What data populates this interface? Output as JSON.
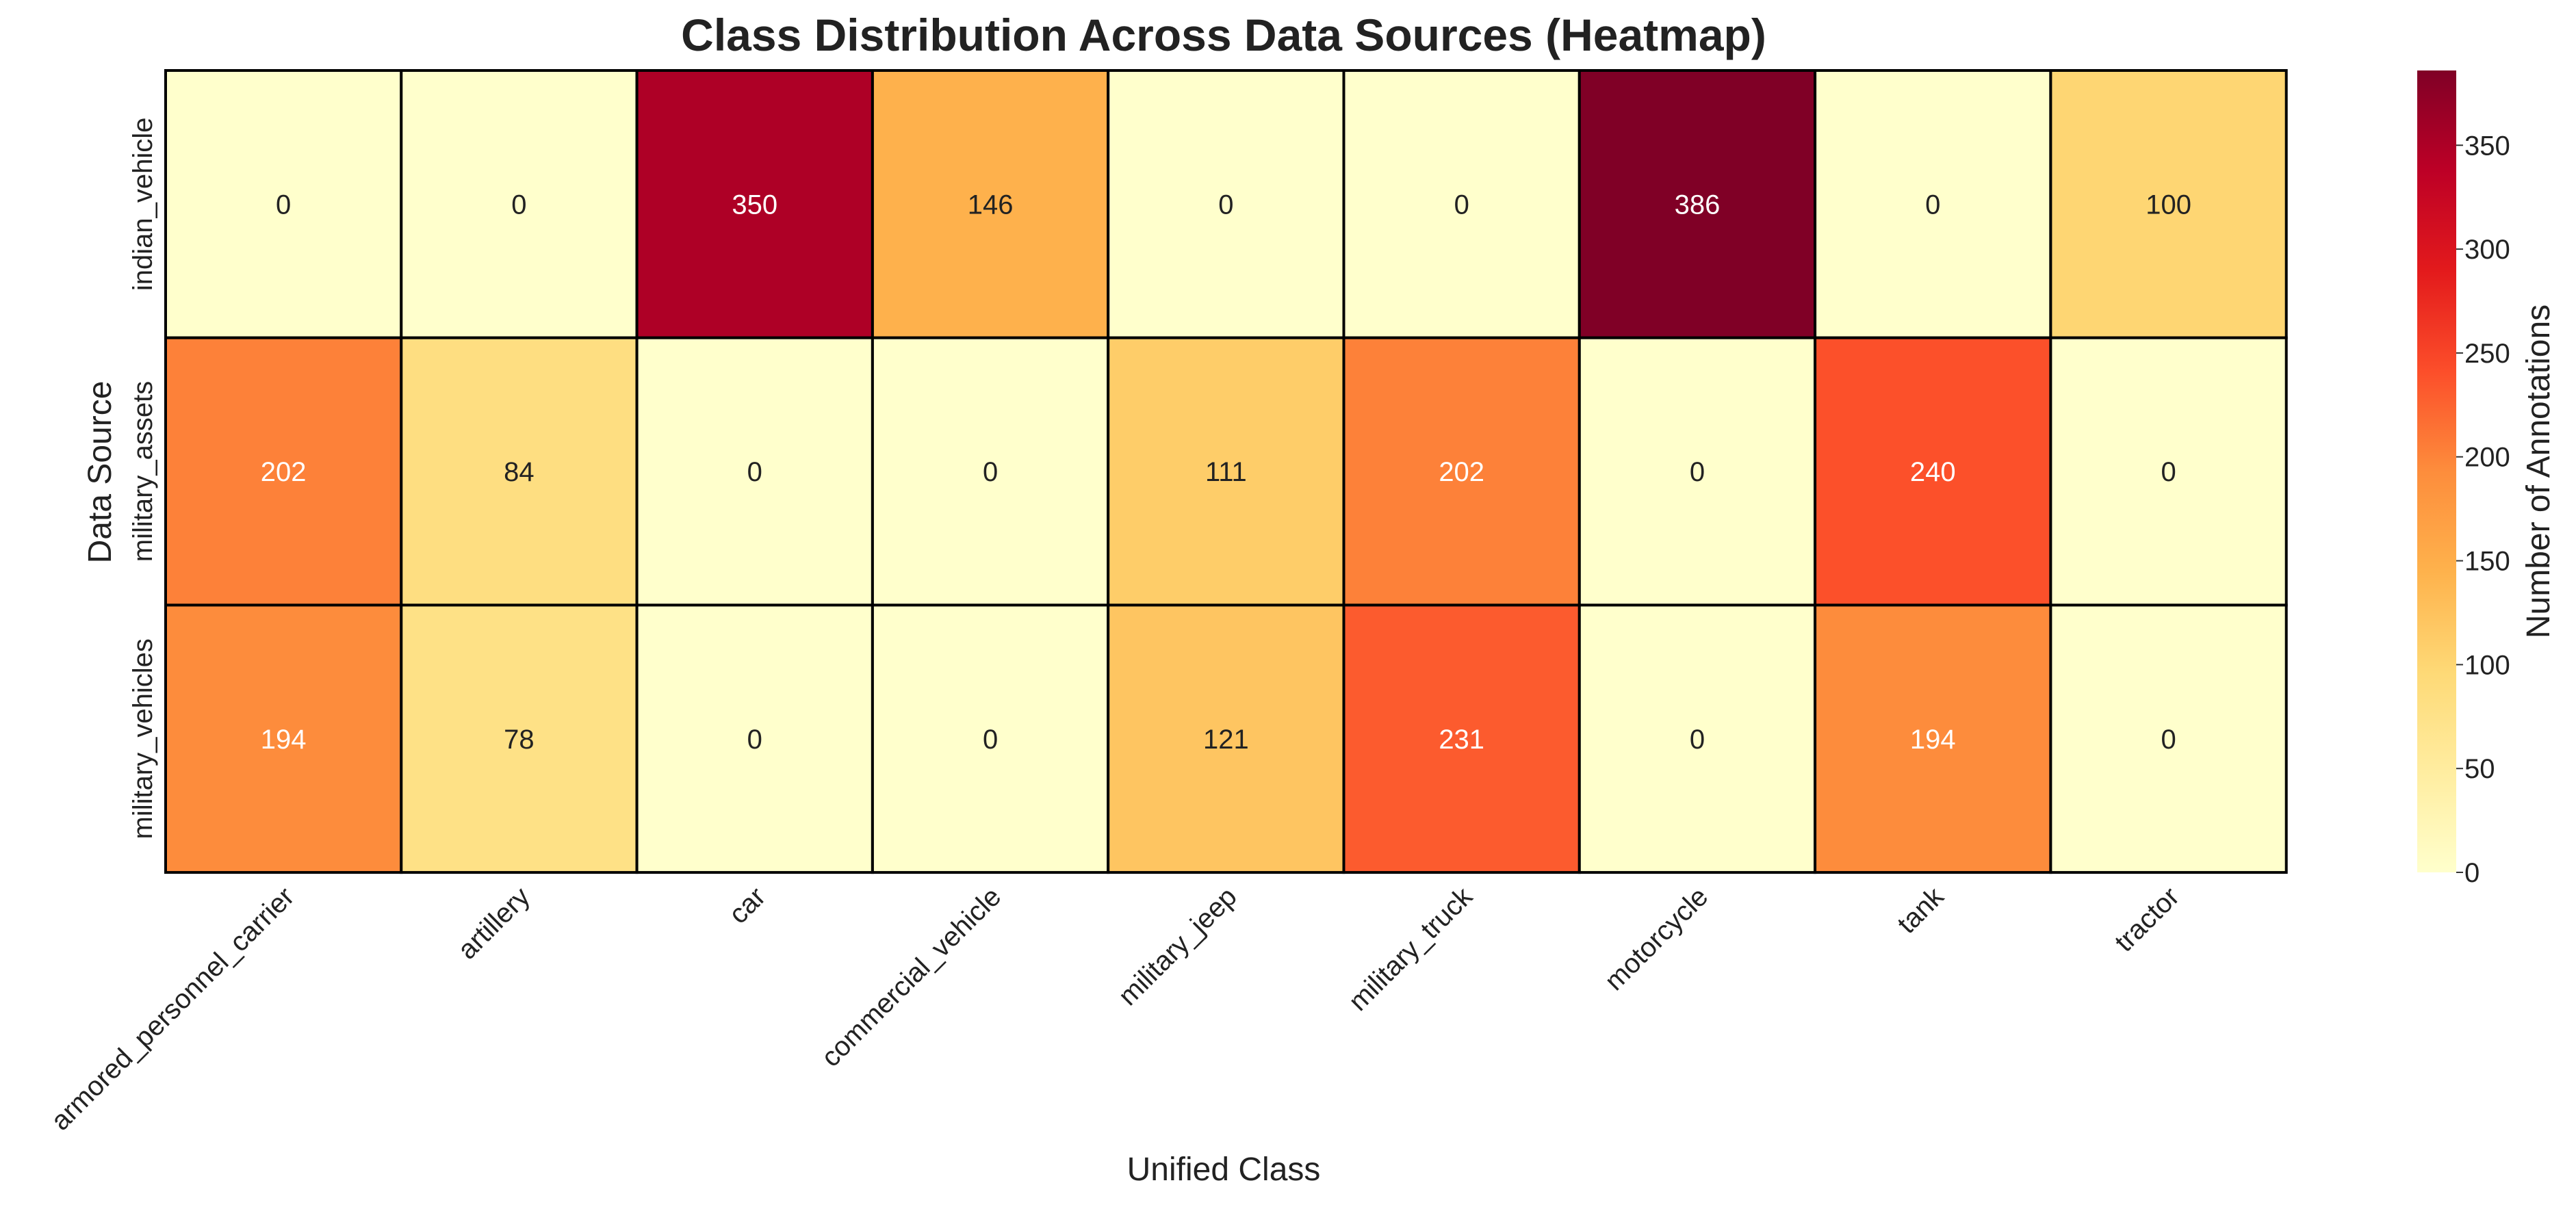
{
  "chart_data": {
    "type": "heatmap",
    "title": "Class Distribution Across Data Sources (Heatmap)",
    "xlabel": "Unified Class",
    "ylabel": "Data Source",
    "x_categories": [
      "armored_personnel_carrier",
      "artillery",
      "car",
      "commercial_vehicle",
      "military_jeep",
      "military_truck",
      "motorcycle",
      "tank",
      "tractor"
    ],
    "y_categories": [
      "indian_vehicle",
      "military_assets",
      "military_vehicles"
    ],
    "values": [
      [
        0,
        0,
        350,
        146,
        0,
        0,
        386,
        0,
        100
      ],
      [
        202,
        84,
        0,
        0,
        111,
        202,
        0,
        240,
        0
      ],
      [
        194,
        78,
        0,
        0,
        121,
        231,
        0,
        194,
        0
      ]
    ],
    "colorbar": {
      "label": "Number of Annotations",
      "range": [
        0,
        386
      ],
      "ticks": [
        0,
        50,
        100,
        150,
        200,
        250,
        300,
        350
      ],
      "colormap": "YlOrRd",
      "colors": [
        "#ffffcc",
        "#ffeda0",
        "#fed976",
        "#feb24c",
        "#fd8d3c",
        "#fc4e2a",
        "#e31a1c",
        "#bd0026",
        "#800026"
      ]
    },
    "grid": false
  }
}
